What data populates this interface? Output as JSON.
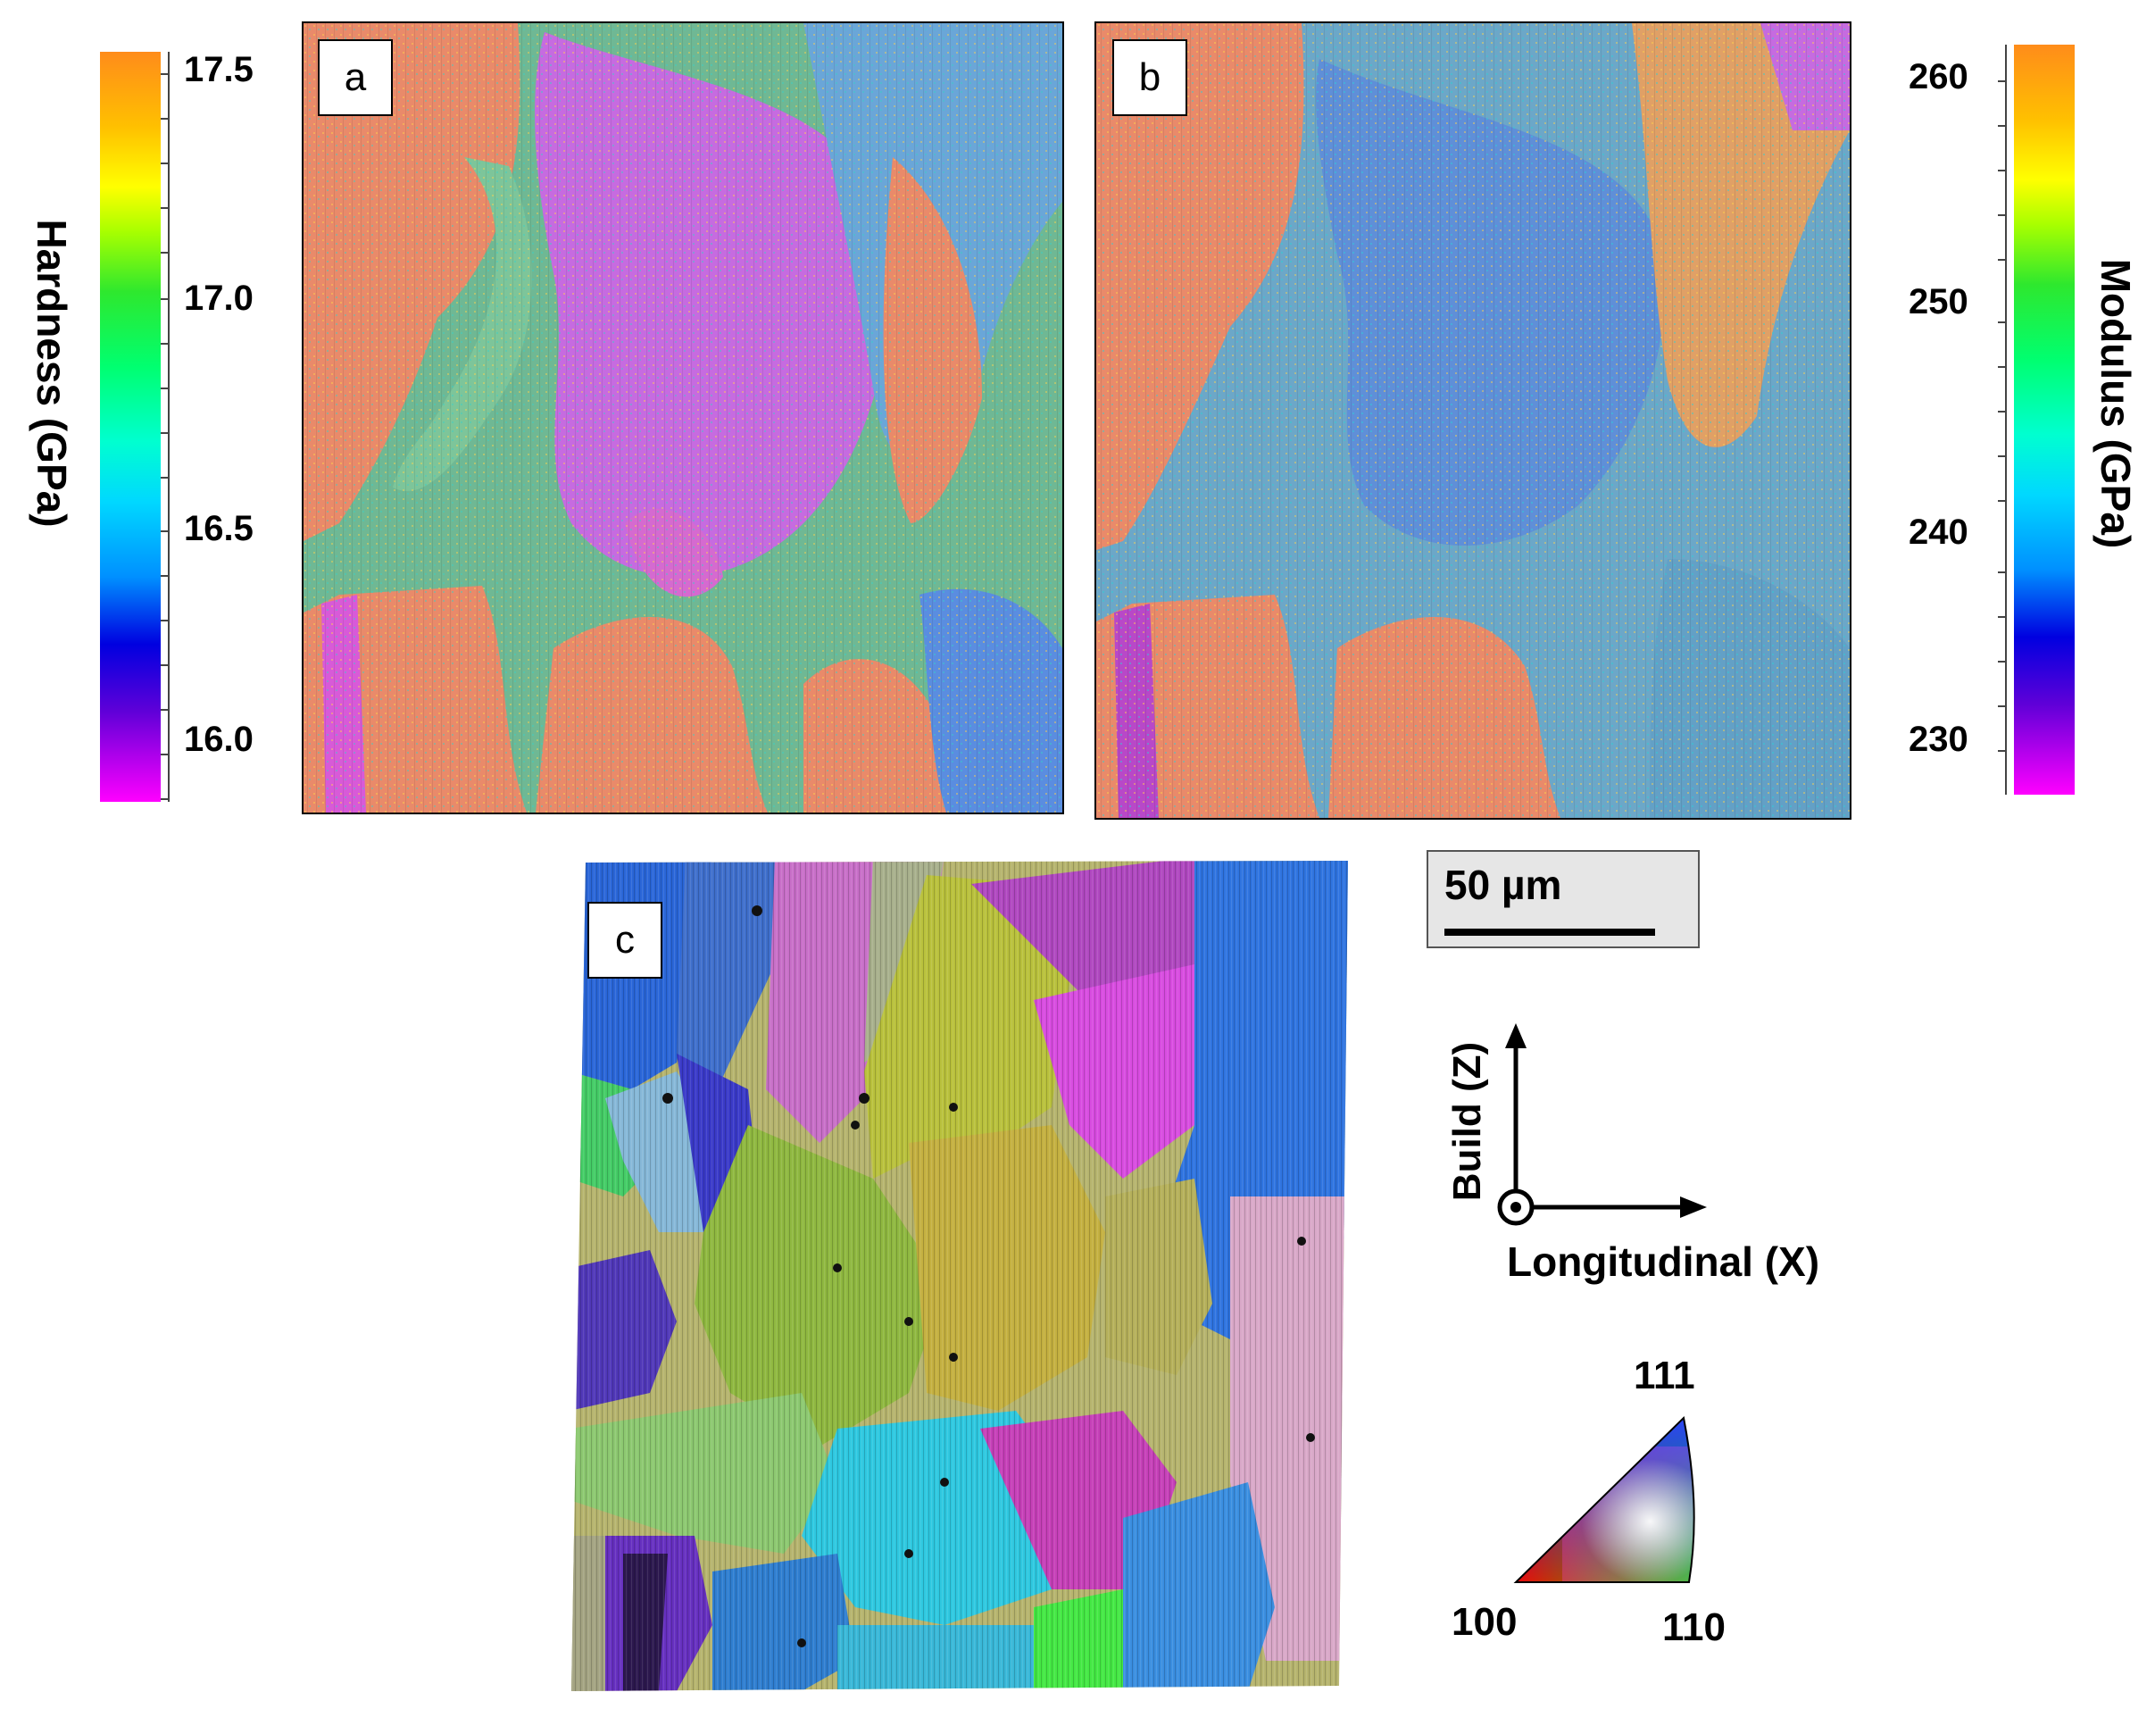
{
  "hardness_scale": {
    "title": "Hardness (GPa)",
    "ticks": [
      "17.5",
      "17.0",
      "16.5",
      "16.0"
    ]
  },
  "modulus_scale": {
    "title": "Modulus (GPa)",
    "ticks": [
      "260",
      "250",
      "240",
      "230"
    ]
  },
  "panels": {
    "a": "a",
    "b": "b",
    "c": "c"
  },
  "scale_bar": {
    "label": "50 µm"
  },
  "axes_indicator": {
    "vertical": "Build (Z)",
    "horizontal": "Longitudinal (X)"
  },
  "ipf_legend": {
    "top": "111",
    "left": "100",
    "right": "110"
  },
  "colors": {
    "orange_grain": "#e98a6a",
    "purple_grain": "#c66be0",
    "green_mix": "#6fc48c",
    "blue_mix": "#5a8de0"
  }
}
